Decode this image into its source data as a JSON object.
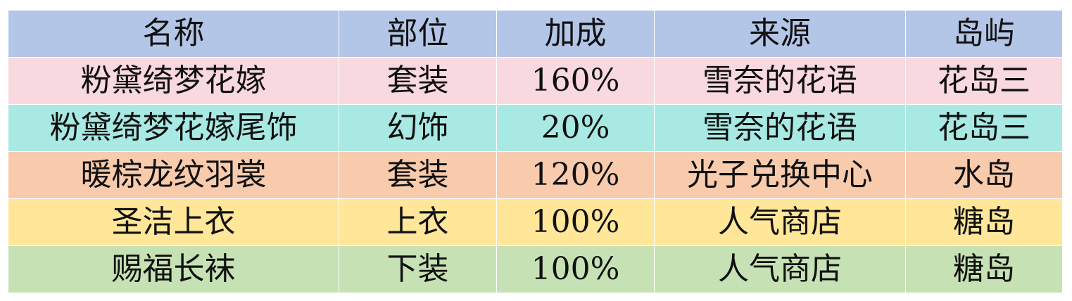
{
  "table": {
    "headers": [
      "名称",
      "部位",
      "加成",
      "来源",
      "岛屿"
    ],
    "header_color": "#b4c6e7",
    "rows": [
      {
        "cells": [
          "粉黛绮梦花嫁",
          "套装",
          "160%",
          "雪奈的花语",
          "花岛三"
        ],
        "color": "#f8d9df"
      },
      {
        "cells": [
          "粉黛绮梦花嫁尾饰",
          "幻饰",
          "20%",
          "雪奈的花语",
          "花岛三"
        ],
        "color": "#a8eae3"
      },
      {
        "cells": [
          "暖棕龙纹羽裳",
          "套装",
          "120%",
          "光子兑换中心",
          "水岛"
        ],
        "color": "#f8cbad"
      },
      {
        "cells": [
          "圣洁上衣",
          "上衣",
          "100%",
          "人气商店",
          "糖岛"
        ],
        "color": "#ffe699"
      },
      {
        "cells": [
          "赐福长袜",
          "下装",
          "100%",
          "人气商店",
          "糖岛"
        ],
        "color": "#c6e2b4"
      }
    ]
  }
}
